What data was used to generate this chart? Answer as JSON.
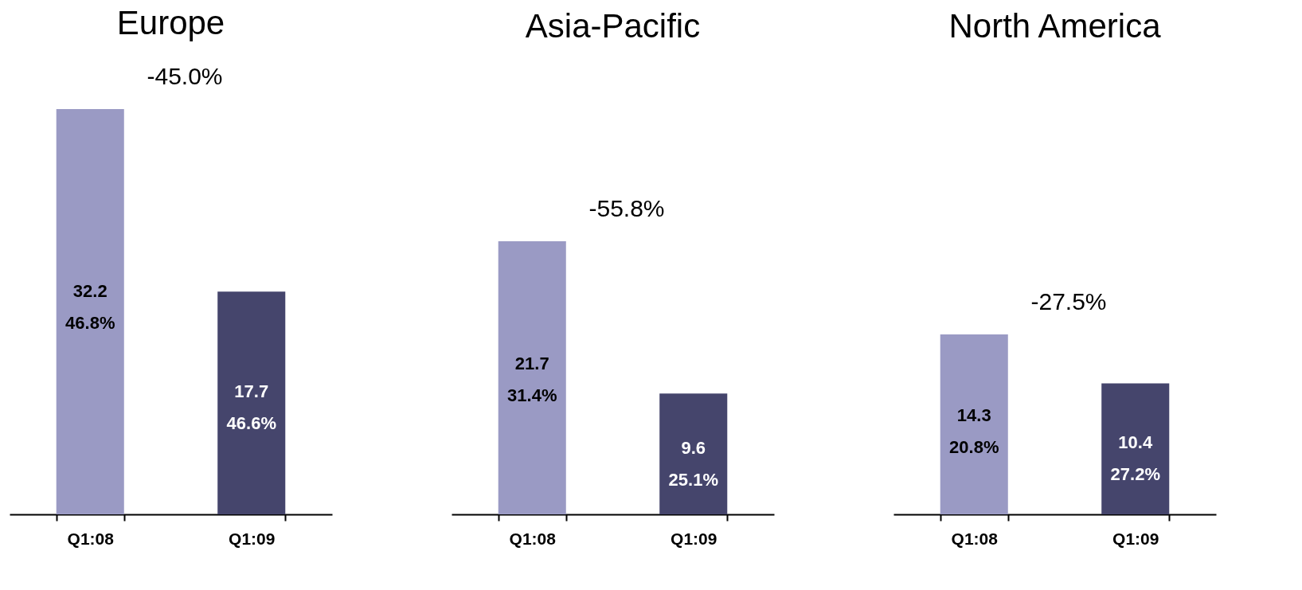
{
  "chart_data": [
    {
      "type": "bar",
      "title": "Europe",
      "categories": [
        "Q1:08",
        "Q1:09"
      ],
      "values": [
        32.2,
        17.7
      ],
      "colors": [
        "#9a9ac4",
        "#45456c"
      ],
      "data_labels": true,
      "annotations": [
        "-45.0%",
        "46.8%",
        "46.6%"
      ]
    },
    {
      "type": "bar",
      "title": "Asia-Pacific",
      "categories": [
        "Q1:08",
        "Q1:09"
      ],
      "values": [
        21.7,
        9.6
      ],
      "colors": [
        "#9a9ac4",
        "#45456c"
      ],
      "data_labels": true,
      "annotations": [
        "-55.8%",
        "31.4%",
        "25.1%"
      ]
    },
    {
      "type": "bar",
      "title": "North America",
      "categories": [
        "Q1:08",
        "Q1:09"
      ],
      "values": [
        14.3,
        10.4
      ],
      "colors": [
        "#9a9ac4",
        "#45456c"
      ],
      "data_labels": true,
      "annotations": [
        "-27.5%",
        "20.8%",
        "27.2%"
      ]
    }
  ]
}
